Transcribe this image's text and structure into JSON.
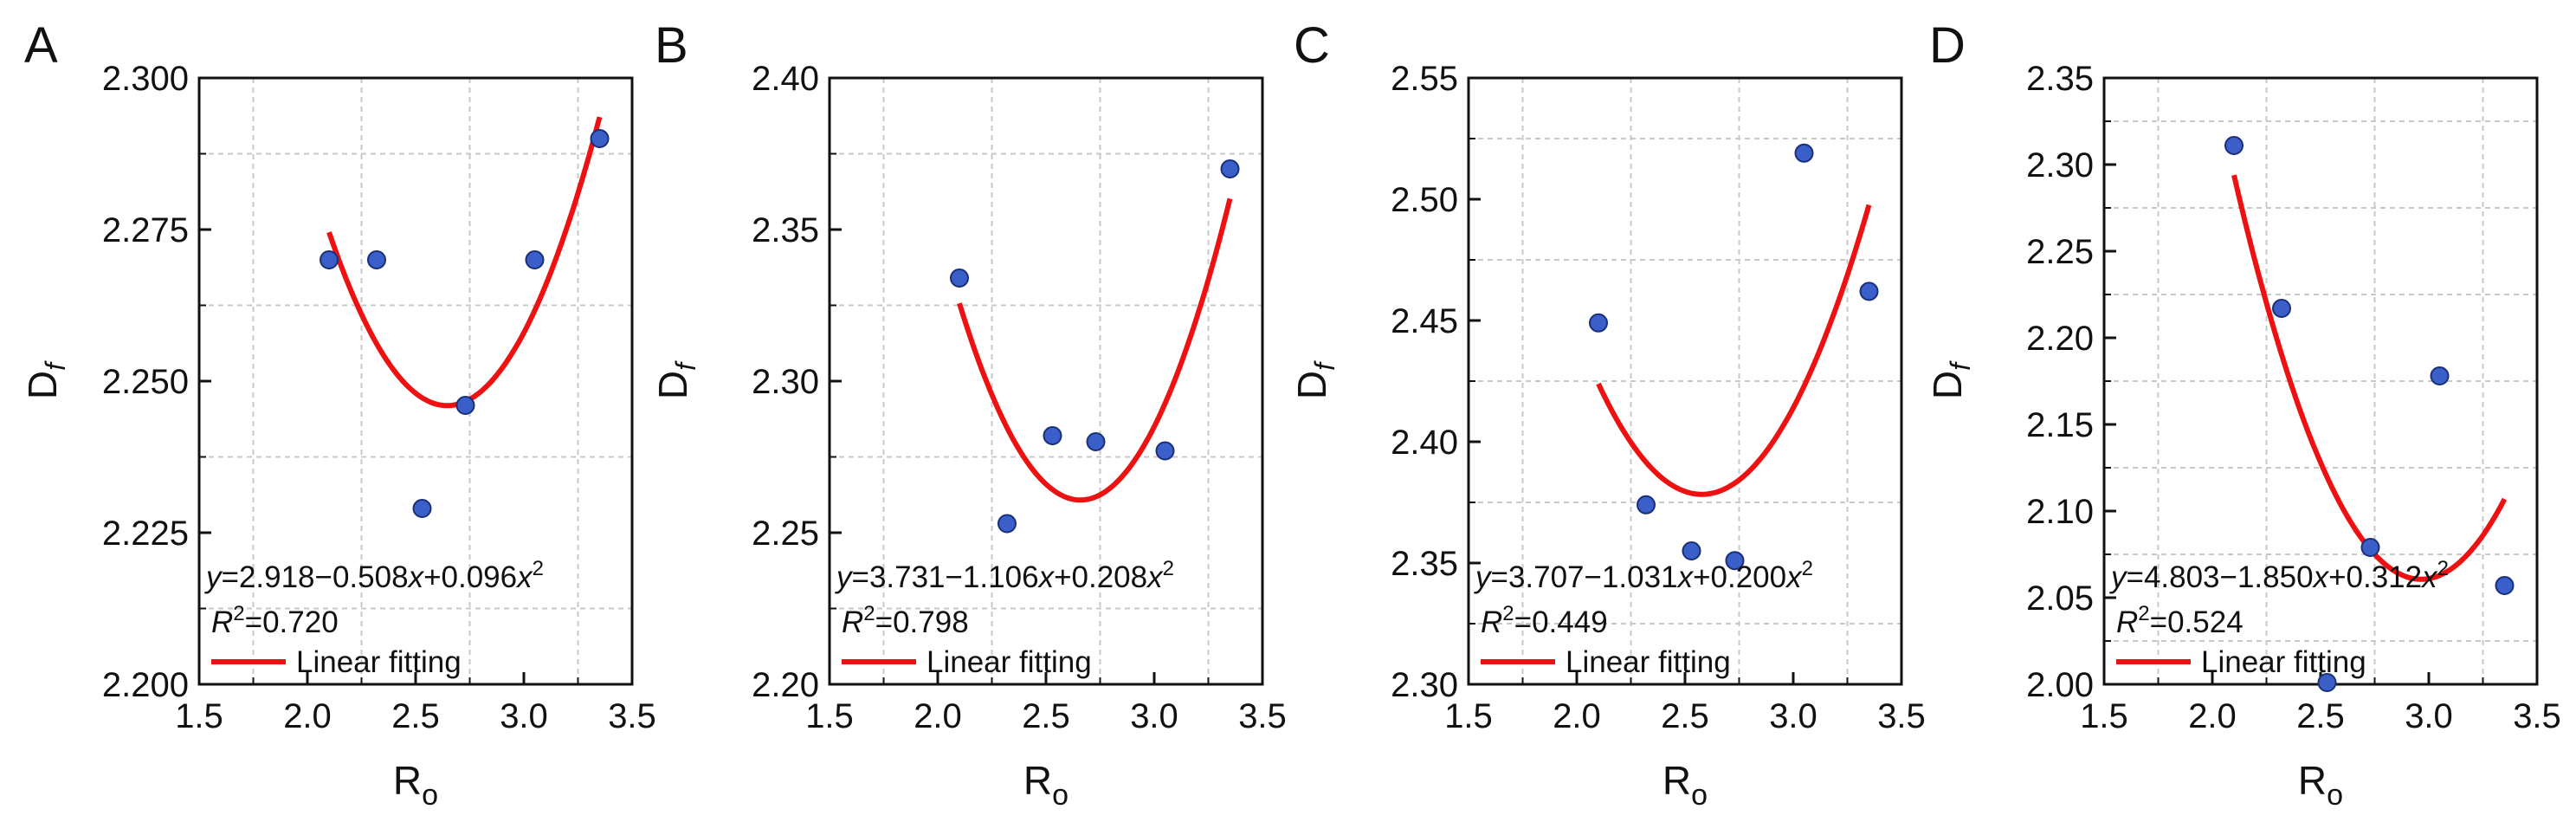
{
  "figure": {
    "panels": [
      {
        "letter": "A",
        "ylabel_main": "D",
        "ylabel_sub": "f",
        "xlabel_main": "R",
        "xlabel_sub": "o",
        "eq_y": "y",
        "eq_mid1": "=2.918−0.508",
        "eq_x1": "x",
        "eq_mid2": "+0.096",
        "eq_x2": "x",
        "eq_exp": "2",
        "r2_R": "R",
        "r2_exp": "2",
        "r2_value": "=0.720",
        "legend_label": "Linear fitting"
      },
      {
        "letter": "B",
        "ylabel_main": "D",
        "ylabel_sub": "f",
        "xlabel_main": "R",
        "xlabel_sub": "o",
        "eq_y": "y",
        "eq_mid1": "=3.731−1.106",
        "eq_x1": "x",
        "eq_mid2": "+0.208",
        "eq_x2": "x",
        "eq_exp": "2",
        "r2_R": "R",
        "r2_exp": "2",
        "r2_value": "=0.798",
        "legend_label": "Linear fitting"
      },
      {
        "letter": "C",
        "ylabel_main": "D",
        "ylabel_sub": "f",
        "xlabel_main": "R",
        "xlabel_sub": "o",
        "eq_y": "y",
        "eq_mid1": "=3.707−1.031",
        "eq_x1": "x",
        "eq_mid2": "+0.200",
        "eq_x2": "x",
        "eq_exp": "2",
        "r2_R": "R",
        "r2_exp": "2",
        "r2_value": "=0.449",
        "legend_label": "Linear fitting"
      },
      {
        "letter": "D",
        "ylabel_main": "D",
        "ylabel_sub": "f",
        "xlabel_main": "R",
        "xlabel_sub": "o",
        "eq_y": "y",
        "eq_mid1": "=4.803−1.850",
        "eq_x1": "x",
        "eq_mid2": "+0.312",
        "eq_x2": "x",
        "eq_exp": "2",
        "r2_R": "R",
        "r2_exp": "2",
        "r2_value": "=0.524",
        "legend_label": "Linear fitting"
      }
    ]
  },
  "colors": {
    "point_fill": "#3a5fc8",
    "point_stroke": "#1a2f7a",
    "fit_line": "#ee1111",
    "axis": "#111111",
    "grid": "#c8c8c8"
  },
  "chart_data": [
    {
      "type": "scatter",
      "panel": "A",
      "xlabel": "Ro",
      "ylabel": "Df",
      "xlim": [
        1.5,
        3.5
      ],
      "ylim": [
        2.2,
        2.3
      ],
      "xticks": [
        1.5,
        2.0,
        2.5,
        3.0,
        3.5
      ],
      "yticks": [
        2.2,
        2.225,
        2.25,
        2.275,
        2.3
      ],
      "xtick_labels": [
        "1.5",
        "2.0",
        "2.5",
        "3.0",
        "3.5"
      ],
      "ytick_labels": [
        "2.200",
        "2.225",
        "2.250",
        "2.275",
        "2.300"
      ],
      "grid": true,
      "points": {
        "x": [
          2.1,
          2.32,
          2.53,
          2.73,
          3.05,
          3.35
        ],
        "y": [
          2.27,
          2.27,
          2.229,
          2.246,
          2.27,
          2.29
        ]
      },
      "fit": {
        "label": "Linear fitting",
        "x_range": [
          2.1,
          3.35
        ],
        "coefficients": [
          2.918,
          -0.508,
          0.096
        ]
      },
      "legend": "bottom-left"
    },
    {
      "type": "scatter",
      "panel": "B",
      "xlabel": "Ro",
      "ylabel": "Df",
      "xlim": [
        1.5,
        3.5
      ],
      "ylim": [
        2.2,
        2.4
      ],
      "xticks": [
        1.5,
        2.0,
        2.5,
        3.0,
        3.5
      ],
      "yticks": [
        2.2,
        2.25,
        2.3,
        2.35,
        2.4
      ],
      "xtick_labels": [
        "1.5",
        "2.0",
        "2.5",
        "3.0",
        "3.5"
      ],
      "ytick_labels": [
        "2.20",
        "2.25",
        "2.30",
        "2.35",
        "2.40"
      ],
      "grid": true,
      "points": {
        "x": [
          2.1,
          2.32,
          2.53,
          2.73,
          3.05,
          3.35
        ],
        "y": [
          2.334,
          2.253,
          2.282,
          2.28,
          2.277,
          2.37
        ]
      },
      "fit": {
        "label": "Linear fitting",
        "x_range": [
          2.1,
          3.35
        ],
        "coefficients": [
          3.731,
          -1.106,
          0.208
        ]
      },
      "legend": "bottom-left"
    },
    {
      "type": "scatter",
      "panel": "C",
      "xlabel": "Ro",
      "ylabel": "Df",
      "xlim": [
        1.5,
        3.5
      ],
      "ylim": [
        2.3,
        2.55
      ],
      "xticks": [
        1.5,
        2.0,
        2.5,
        3.0,
        3.5
      ],
      "yticks": [
        2.3,
        2.35,
        2.4,
        2.45,
        2.5,
        2.55
      ],
      "xtick_labels": [
        "1.5",
        "2.0",
        "2.5",
        "3.0",
        "3.5"
      ],
      "ytick_labels": [
        "2.30",
        "2.35",
        "2.40",
        "2.45",
        "2.50",
        "2.55"
      ],
      "grid": true,
      "points": {
        "x": [
          2.1,
          2.32,
          2.53,
          2.73,
          3.05,
          3.35
        ],
        "y": [
          2.449,
          2.374,
          2.355,
          2.351,
          2.519,
          2.462
        ]
      },
      "fit": {
        "label": "Linear fitting",
        "x_range": [
          2.1,
          3.35
        ],
        "coefficients": [
          3.707,
          -1.031,
          0.2
        ]
      },
      "legend": "bottom-left"
    },
    {
      "type": "scatter",
      "panel": "D",
      "xlabel": "Ro",
      "ylabel": "Df",
      "xlim": [
        1.5,
        3.5
      ],
      "ylim": [
        2.0,
        2.35
      ],
      "xticks": [
        1.5,
        2.0,
        2.5,
        3.0,
        3.5
      ],
      "yticks": [
        2.0,
        2.05,
        2.1,
        2.15,
        2.2,
        2.25,
        2.3,
        2.35
      ],
      "xtick_labels": [
        "1.5",
        "2.0",
        "2.5",
        "3.0",
        "3.5"
      ],
      "ytick_labels": [
        "2.00",
        "2.05",
        "2.10",
        "2.15",
        "2.20",
        "2.25",
        "2.30",
        "2.35"
      ],
      "grid": true,
      "points": {
        "x": [
          2.1,
          2.32,
          2.53,
          2.73,
          3.05,
          3.35
        ],
        "y": [
          2.311,
          2.217,
          2.001,
          2.079,
          2.178,
          2.057
        ]
      },
      "fit": {
        "label": "Linear fitting",
        "x_range": [
          2.1,
          3.35
        ],
        "coefficients": [
          4.803,
          -1.85,
          0.312
        ]
      },
      "legend": "bottom-left"
    }
  ]
}
